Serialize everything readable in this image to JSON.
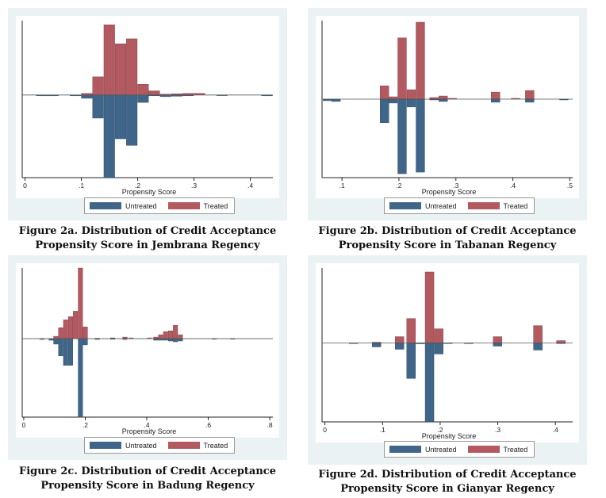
{
  "colors": {
    "treated": "#b35a61",
    "untreated": "#3f6689",
    "panel_bg": "#eaf2f3"
  },
  "legend": {
    "untreated": "Untreated",
    "treated": "Treated"
  },
  "captions": {
    "a": [
      "Figure 2a. Distribution of Credit Acceptance",
      "Propensity Score in Jembrana Regency"
    ],
    "b": [
      "Figure 2b. Distribution of Credit Acceptance",
      "Propensity Score in Tabanan Regency"
    ],
    "c": [
      "Figure 2c. Distribution of Credit Acceptance",
      "Propensity Score in Badung Regency"
    ],
    "d": [
      "Figure 2d. Distribution of Credit Acceptance",
      "Propensity Score in Gianyar Regency"
    ]
  },
  "chart_data": [
    {
      "id": "a",
      "type": "bar",
      "xlabel": "Propensity Score",
      "xlim": [
        -0.005,
        0.44
      ],
      "xticks": [
        0,
        0.1,
        0.2,
        0.3,
        0.4
      ],
      "xticklabels": [
        "0",
        ".1",
        ".2",
        ".3",
        ".4"
      ],
      "ylim": [
        -1,
        0.9
      ],
      "bin_width": 0.02,
      "bins": [
        0.03,
        0.05,
        0.09,
        0.11,
        0.13,
        0.15,
        0.17,
        0.19,
        0.21,
        0.23,
        0.25,
        0.27,
        0.29,
        0.31,
        0.35,
        0.43
      ],
      "treated": [
        0.0,
        0.0,
        0.0,
        0.02,
        0.22,
        0.85,
        0.62,
        0.68,
        0.13,
        0.05,
        0.01,
        0.015,
        0.02,
        0.02,
        0.0,
        0.0
      ],
      "untreated": [
        0.01,
        0.01,
        0.01,
        0.04,
        0.28,
        1.0,
        0.53,
        0.61,
        0.09,
        0.01,
        0.02,
        0.015,
        0.01,
        0.0,
        0.005,
        0.01
      ]
    },
    {
      "id": "b",
      "type": "bar",
      "xlabel": "Propensity Score",
      "xlim": [
        0.065,
        0.505
      ],
      "xticks": [
        0.1,
        0.2,
        0.3,
        0.4,
        0.5
      ],
      "xticklabels": [
        ".1",
        ".2",
        ".3",
        ".4",
        ".5"
      ],
      "ylim": [
        -1,
        1
      ],
      "bin_width": 0.016,
      "bins": [
        0.075,
        0.09,
        0.175,
        0.19,
        0.206,
        0.222,
        0.238,
        0.262,
        0.278,
        0.294,
        0.37,
        0.405,
        0.43,
        0.49
      ],
      "treated": [
        0.0,
        0.0,
        0.17,
        0.03,
        0.78,
        0.12,
        0.98,
        0.02,
        0.04,
        0.01,
        0.09,
        0.01,
        0.11,
        0.0
      ],
      "untreated": [
        0.02,
        0.03,
        0.3,
        0.05,
        0.95,
        0.1,
        0.93,
        0.01,
        0.03,
        0.0,
        0.04,
        0.0,
        0.04,
        0.01
      ]
    },
    {
      "id": "c",
      "type": "bar",
      "xlabel": "Propensity Score",
      "xlim": [
        -0.005,
        0.81
      ],
      "xticks": [
        0,
        0.2,
        0.4,
        0.6,
        0.8
      ],
      "xticklabels": [
        "0",
        ".2",
        ".4",
        ".6",
        ".8"
      ],
      "ylim": [
        -1,
        0.9
      ],
      "bin_width": 0.016,
      "bins": [
        0.06,
        0.09,
        0.105,
        0.121,
        0.137,
        0.153,
        0.169,
        0.185,
        0.201,
        0.24,
        0.29,
        0.33,
        0.35,
        0.41,
        0.43,
        0.446,
        0.462,
        0.478,
        0.494,
        0.51,
        0.526,
        0.62,
        0.68
      ],
      "treated": [
        0.0,
        0.0,
        0.03,
        0.14,
        0.24,
        0.28,
        0.35,
        0.9,
        0.15,
        0.005,
        0.01,
        0.02,
        0.01,
        0.01,
        0.02,
        0.05,
        0.09,
        0.1,
        0.17,
        0.05,
        0.0,
        0.0,
        0.0
      ],
      "untreated": [
        0.01,
        0.02,
        0.07,
        0.22,
        0.34,
        0.34,
        0.0,
        1.0,
        0.08,
        0.01,
        0.005,
        0.01,
        0.0,
        0.0,
        0.02,
        0.02,
        0.02,
        0.03,
        0.04,
        0.03,
        0.0,
        0.005,
        0.005
      ]
    },
    {
      "id": "d",
      "type": "bar",
      "xlabel": "Propensity Score",
      "xlim": [
        -0.005,
        0.43
      ],
      "xticks": [
        0,
        0.1,
        0.2,
        0.3,
        0.4
      ],
      "xticklabels": [
        "0",
        ".1",
        ".2",
        ".3",
        ".4"
      ],
      "ylim": [
        -1,
        0.95
      ],
      "bin_width": 0.016,
      "bins": [
        0.05,
        0.09,
        0.13,
        0.15,
        0.166,
        0.182,
        0.198,
        0.214,
        0.25,
        0.3,
        0.35,
        0.37,
        0.41
      ],
      "treated": [
        0.0,
        0.01,
        0.08,
        0.31,
        0.0,
        0.9,
        0.18,
        0.0,
        0.0,
        0.08,
        0.0,
        0.22,
        0.03
      ],
      "untreated": [
        0.005,
        0.05,
        0.08,
        0.45,
        0.01,
        1.0,
        0.14,
        0.005,
        0.005,
        0.04,
        0.0,
        0.09,
        0.005
      ]
    }
  ]
}
